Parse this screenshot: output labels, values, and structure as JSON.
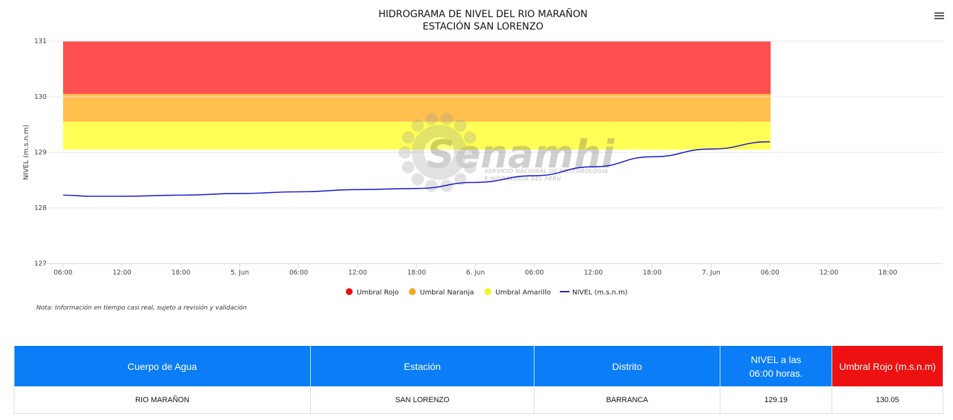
{
  "chart_data": {
    "type": "line",
    "title": "HIDROGRAMA DE NIVEL DEL RIO MARAÑON",
    "subtitle": "ESTACIÓN SAN LORENZO",
    "ylabel": "NIVEL (m.s.n.m)",
    "xlabel": "",
    "ylim": [
      127,
      131
    ],
    "yticks": [
      "127",
      "128",
      "129",
      "130",
      "131"
    ],
    "xticks": [
      "06:00",
      "12:00",
      "18:00",
      "5. Jun",
      "06:00",
      "12:00",
      "18:00",
      "6. Jun",
      "06:00",
      "12:00",
      "18:00",
      "7. Jun",
      "06:00",
      "12:00",
      "18:00"
    ],
    "x_range_hours": [
      0,
      84
    ],
    "bands": [
      {
        "name": "Umbral Rojo",
        "from": 130.05,
        "to": 131,
        "color": "#ff5050"
      },
      {
        "name": "Umbral Naranja",
        "from": 129.55,
        "to": 130.05,
        "color": "#ffc04d"
      },
      {
        "name": "Umbral Amarillo",
        "from": 129.05,
        "to": 129.55,
        "color": "#ffff55"
      }
    ],
    "series": [
      {
        "name": "NIVEL (m.s.n.m)",
        "color": "#1a1acc",
        "x_hours": [
          0,
          3,
          6,
          12,
          18,
          24,
          30,
          36,
          42,
          48,
          54,
          60,
          66,
          72
        ],
        "values": [
          128.23,
          128.21,
          128.21,
          128.23,
          128.26,
          128.29,
          128.33,
          128.35,
          128.46,
          128.58,
          128.74,
          128.92,
          129.06,
          129.19
        ]
      }
    ],
    "legend": [
      {
        "label": "Umbral Rojo",
        "color": "#ee1111",
        "shape": "circle"
      },
      {
        "label": "Umbral Naranja",
        "color": "#f5a623",
        "shape": "circle"
      },
      {
        "label": "Umbral Amarillo",
        "color": "#f5f520",
        "shape": "circle"
      },
      {
        "label": "NIVEL (m.s.n.m)",
        "color": "#1a1acc",
        "shape": "line"
      }
    ],
    "legend_position": "bottom-center",
    "grid": true
  },
  "watermark": {
    "brand": "Senamhi",
    "tagline_1": "SERVICIO NACIONAL DE METEOROLOGÍA",
    "tagline_2": "E HIDROLOGÍA DEL PERÚ"
  },
  "note": "Nota: Información en tiempo casi real, sujeto a revisión y validación",
  "menu": {
    "icon": "hamburger-menu-icon"
  },
  "table": {
    "headers": {
      "cuerpo": "Cuerpo de Agua",
      "estacion": "Estación",
      "distrito": "Distrito",
      "nivel_1": "NIVEL a las",
      "nivel_2": "06:00 horas.",
      "umbral": "Umbral Rojo (m.s.n.m)"
    },
    "row": {
      "cuerpo": "RIO MARAÑON",
      "estacion": "SAN LORENZO",
      "distrito": "BARRANCA",
      "nivel": "129.19",
      "umbral": "130.05"
    }
  }
}
